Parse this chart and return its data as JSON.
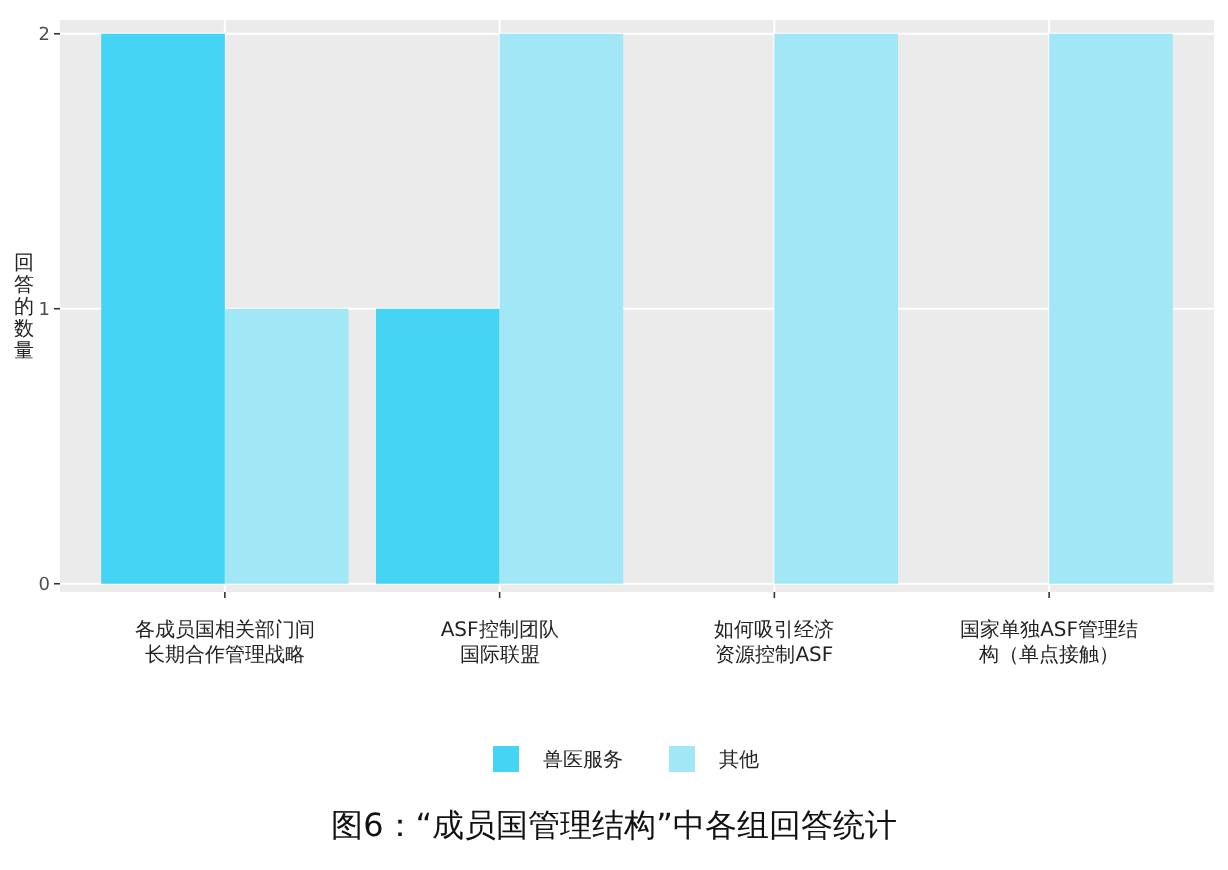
{
  "chart_data": {
    "type": "bar",
    "categories": [
      "各成员国相关部门间长期合作管理战略",
      "ASF控制团队国际联盟",
      "如何吸引经济资源控制ASF",
      "国家单独ASF管理结构（单点接触）"
    ],
    "series": [
      {
        "name": "兽医服务",
        "color": "#45d4f3",
        "values": [
          2,
          1,
          null,
          null
        ]
      },
      {
        "name": "其他",
        "color": "#a2e7f5",
        "values": [
          1,
          2,
          2,
          2
        ]
      }
    ],
    "ylabel": "回答的数量",
    "ylim": [
      -0.03,
      2.05
    ],
    "yticks": [
      0,
      1,
      2
    ],
    "grid": true,
    "legend": "bottom",
    "annotations": [
      "图6：“成员国管理结构”中各组回答统计"
    ]
  }
}
